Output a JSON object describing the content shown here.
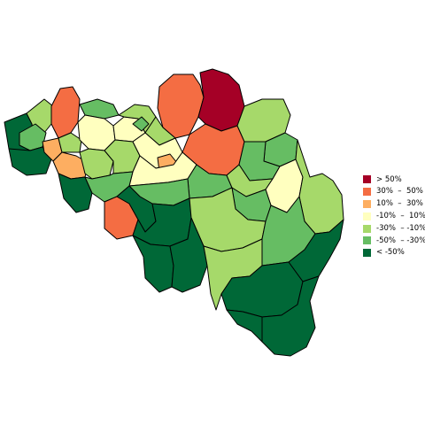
{
  "map": {
    "colors": {
      "gt50": "#a50026",
      "p30_50": "#f46d43",
      "p10_30": "#fdae61",
      "m10_10": "#ffffbf",
      "m30_m10": "#a6d96a",
      "m50_m30": "#66bd63",
      "lt_m50": "#006837"
    }
  },
  "legend": {
    "items": [
      {
        "label": "> 50%",
        "color": "#a50026"
      },
      {
        "label": "30%  –  50%",
        "color": "#f46d43"
      },
      {
        "label": "10%  –  30%",
        "color": "#fdae61"
      },
      {
        "label": "-10%  –  10%",
        "color": "#ffffbf"
      },
      {
        "label": "-30%  – -10%",
        "color": "#a6d96a"
      },
      {
        "label": "-50%  – -30%",
        "color": "#66bd63"
      },
      {
        "label": "< -50%",
        "color": "#006837"
      }
    ]
  }
}
